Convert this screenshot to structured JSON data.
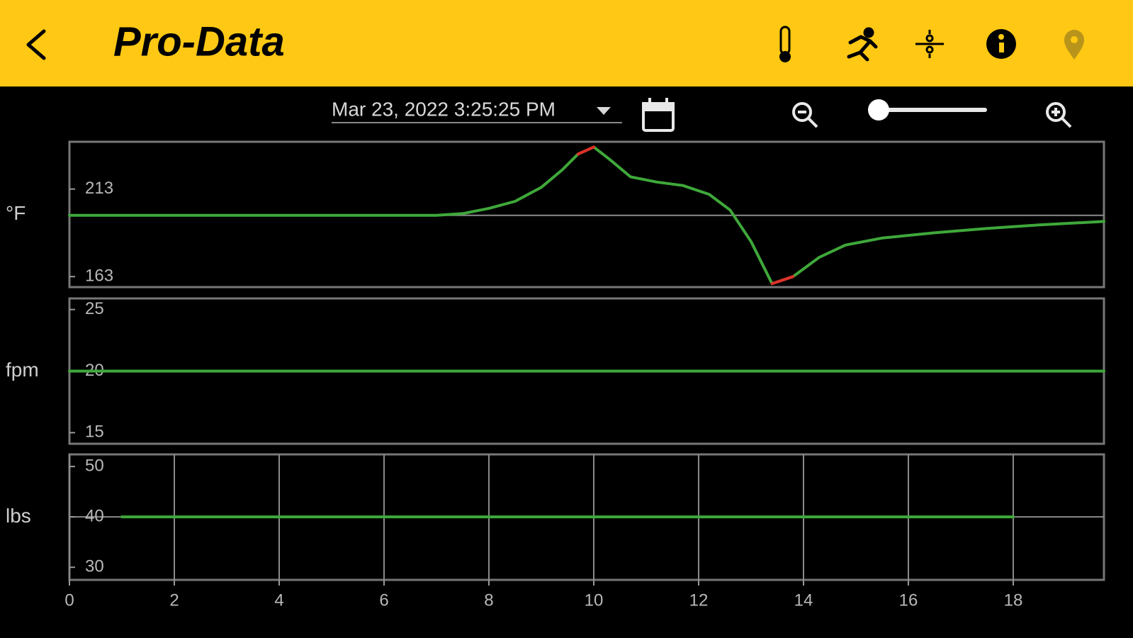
{
  "header": {
    "title": "Pro-Data"
  },
  "toolbar": {
    "date": "Mar 23, 2022 3:25:25 PM"
  },
  "chart_data": [
    {
      "type": "line",
      "y_label": "°F",
      "x": [
        0,
        1,
        2,
        3,
        4,
        5,
        6,
        7,
        7.5,
        8,
        8.5,
        9,
        9.4,
        9.7,
        10,
        10.3,
        10.7,
        11.2,
        11.7,
        12.2,
        12.6,
        13,
        13.4,
        13.8,
        14.3,
        14.8,
        15.5,
        16.5,
        17.5,
        18.5,
        19.73
      ],
      "series": [
        {
          "color": "#3fa83a",
          "values": [
            198,
            198,
            198,
            198,
            198,
            198,
            198,
            198,
            199,
            202,
            206,
            214,
            224,
            233,
            237,
            230,
            220,
            217,
            215,
            210,
            201,
            183,
            159,
            163,
            174,
            181,
            185,
            188,
            190.5,
            192.5,
            194.5
          ]
        },
        {
          "color": "#e0302a",
          "values": [
            null,
            null,
            null,
            null,
            null,
            null,
            null,
            null,
            null,
            null,
            null,
            null,
            null,
            233,
            237,
            null,
            null,
            null,
            null,
            null,
            null,
            null,
            159,
            163,
            null,
            null,
            null,
            null,
            null,
            null,
            null
          ]
        }
      ],
      "reference_line": 198,
      "xlim": [
        0,
        19.73
      ],
      "ylim": [
        157,
        240
      ],
      "yticks": [
        163,
        213
      ]
    },
    {
      "type": "line",
      "y_label": "fpm",
      "x": [
        0,
        19.73
      ],
      "series": [
        {
          "color": "#3fa83a",
          "values": [
            20,
            20
          ]
        }
      ],
      "xlim": [
        0,
        19.73
      ],
      "ylim": [
        14.1,
        25.9
      ],
      "yticks": [
        15,
        20,
        25
      ]
    },
    {
      "type": "line",
      "y_label": "lbs",
      "x": [
        1,
        18
      ],
      "series": [
        {
          "color": "#3fa83a",
          "values": [
            40,
            40
          ]
        }
      ],
      "reference_line": 40,
      "grid": true,
      "xlim": [
        0,
        19.73
      ],
      "xticks": [
        0,
        2,
        4,
        6,
        8,
        10,
        12,
        14,
        16,
        18
      ],
      "ylim": [
        27.5,
        52.4
      ],
      "yticks": [
        30,
        40,
        50
      ]
    }
  ]
}
